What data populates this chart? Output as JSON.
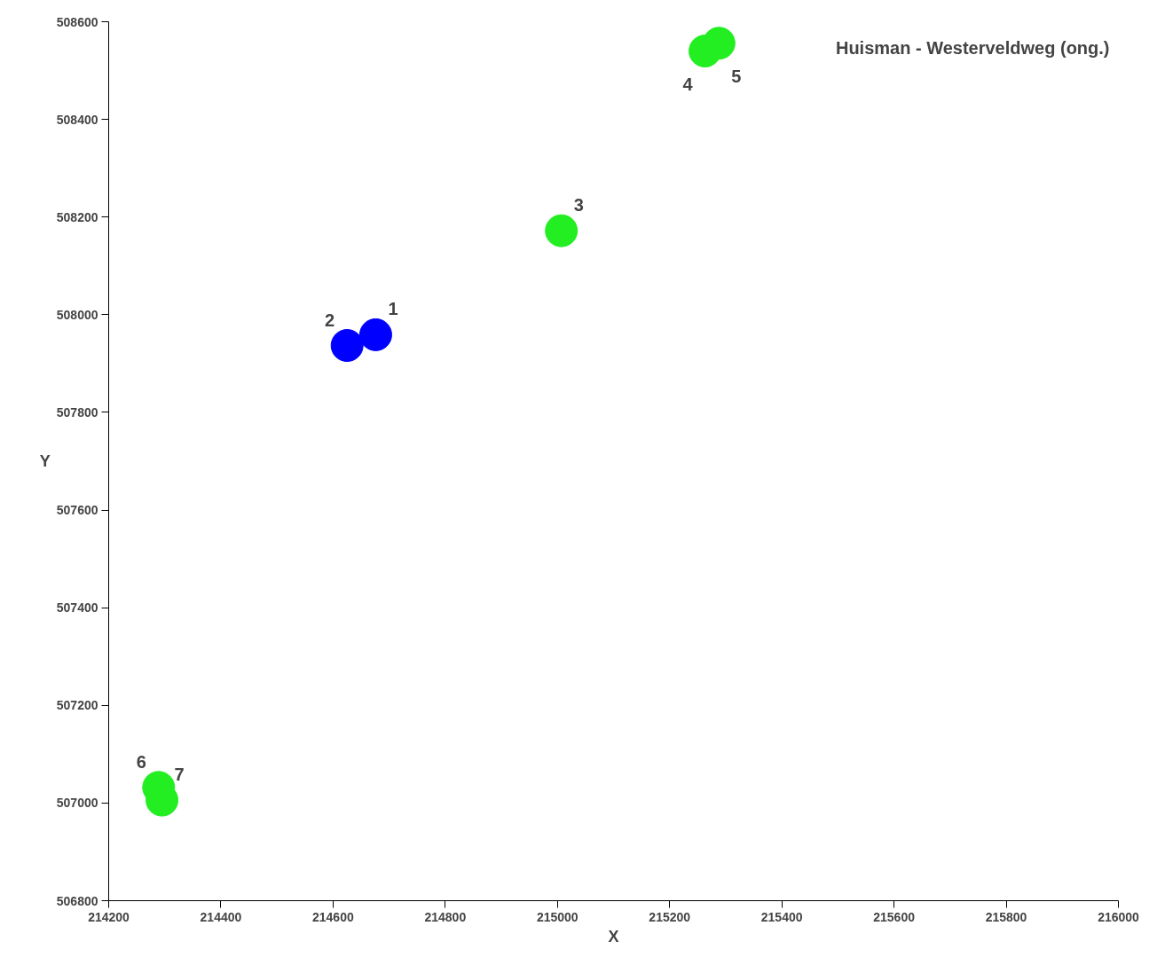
{
  "chart_data": {
    "type": "scatter",
    "title": "Huisman - Westerveldweg (ong.)",
    "xlabel": "X",
    "ylabel": "Y",
    "series": [
      {
        "color": "#0000ff",
        "x": [
          214676,
          214625
        ],
        "values": [
          507959,
          507937
        ]
      },
      {
        "color": "#22ee22",
        "x": [
          215007,
          215263,
          215288,
          214289,
          214295
        ],
        "values": [
          508172,
          508540,
          508556,
          507032,
          507006
        ]
      }
    ],
    "annotations": [
      {
        "text": "1",
        "x": 214676,
        "y": 507959
      },
      {
        "text": "2",
        "x": 214625,
        "y": 507937
      },
      {
        "text": "3",
        "x": 215007,
        "y": 508172
      },
      {
        "text": "4",
        "x": 215263,
        "y": 508540
      },
      {
        "text": "5",
        "x": 215288,
        "y": 508556
      },
      {
        "text": "6",
        "x": 214289,
        "y": 507032
      },
      {
        "text": "7",
        "x": 214295,
        "y": 507006
      }
    ],
    "xlim": [
      214200,
      216000
    ],
    "ylim": [
      506800,
      508600
    ],
    "xticks": [
      214200,
      214400,
      214600,
      214800,
      215000,
      215200,
      215400,
      215600,
      215800,
      216000
    ],
    "yticks": [
      506800,
      507000,
      507200,
      507400,
      507600,
      507800,
      508000,
      508200,
      508400,
      508600
    ],
    "marker": "circle"
  }
}
